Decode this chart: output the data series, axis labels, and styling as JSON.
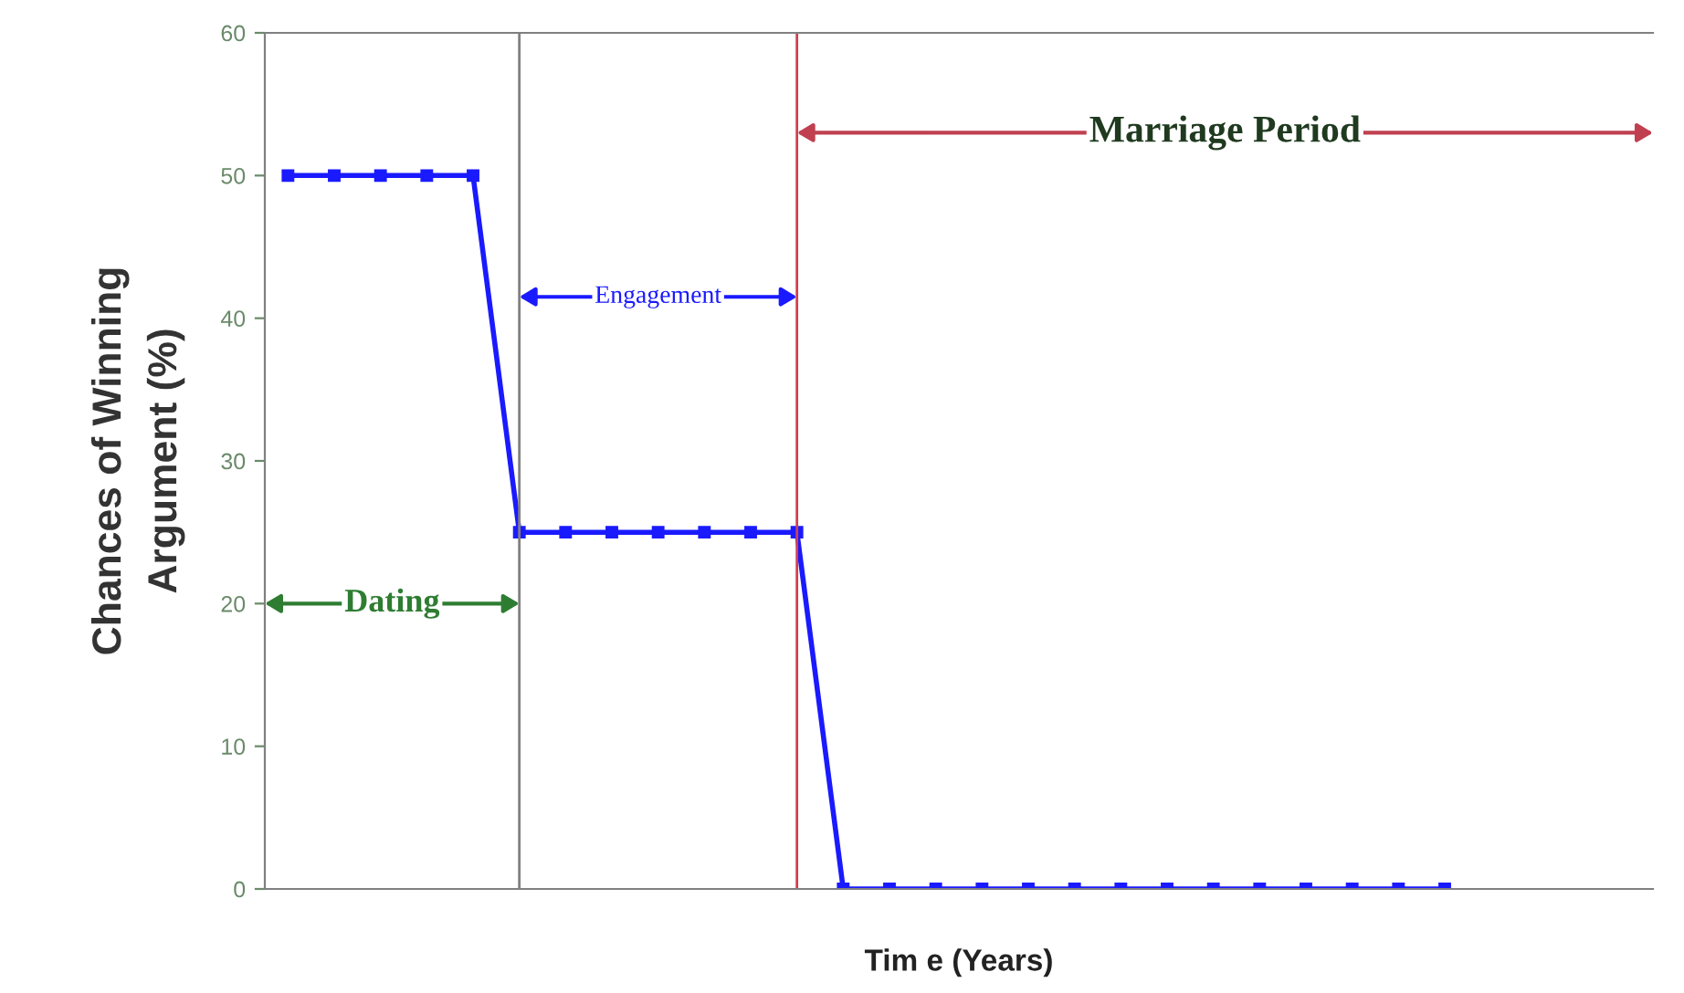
{
  "chart_data": {
    "type": "line",
    "xlabel": "Tim e (Years)",
    "ylabel": "Chances of Winning\nArgument (%)",
    "categories": [
      null,
      null,
      null,
      null,
      null,
      null,
      null,
      null,
      null,
      null,
      null,
      null,
      null,
      null,
      null,
      null,
      null,
      null,
      null,
      null,
      null,
      null,
      null,
      null,
      null,
      null
    ],
    "series": [
      {
        "color": "#1a1aff",
        "values": [
          50,
          50,
          50,
          50,
          50,
          25,
          25,
          25,
          25,
          25,
          25,
          25,
          0,
          0,
          0,
          0,
          0,
          0,
          0,
          0,
          0,
          0,
          0,
          0,
          0,
          0
        ]
      }
    ],
    "marker": "square",
    "line_style": "solid",
    "ylim": [
      0,
      60
    ],
    "yticks": [
      0,
      10,
      20,
      30,
      40,
      50,
      60
    ],
    "annotations": [
      "Dating",
      "Engagement",
      "Marriage Period"
    ],
    "grid": false,
    "legend": false
  }
}
